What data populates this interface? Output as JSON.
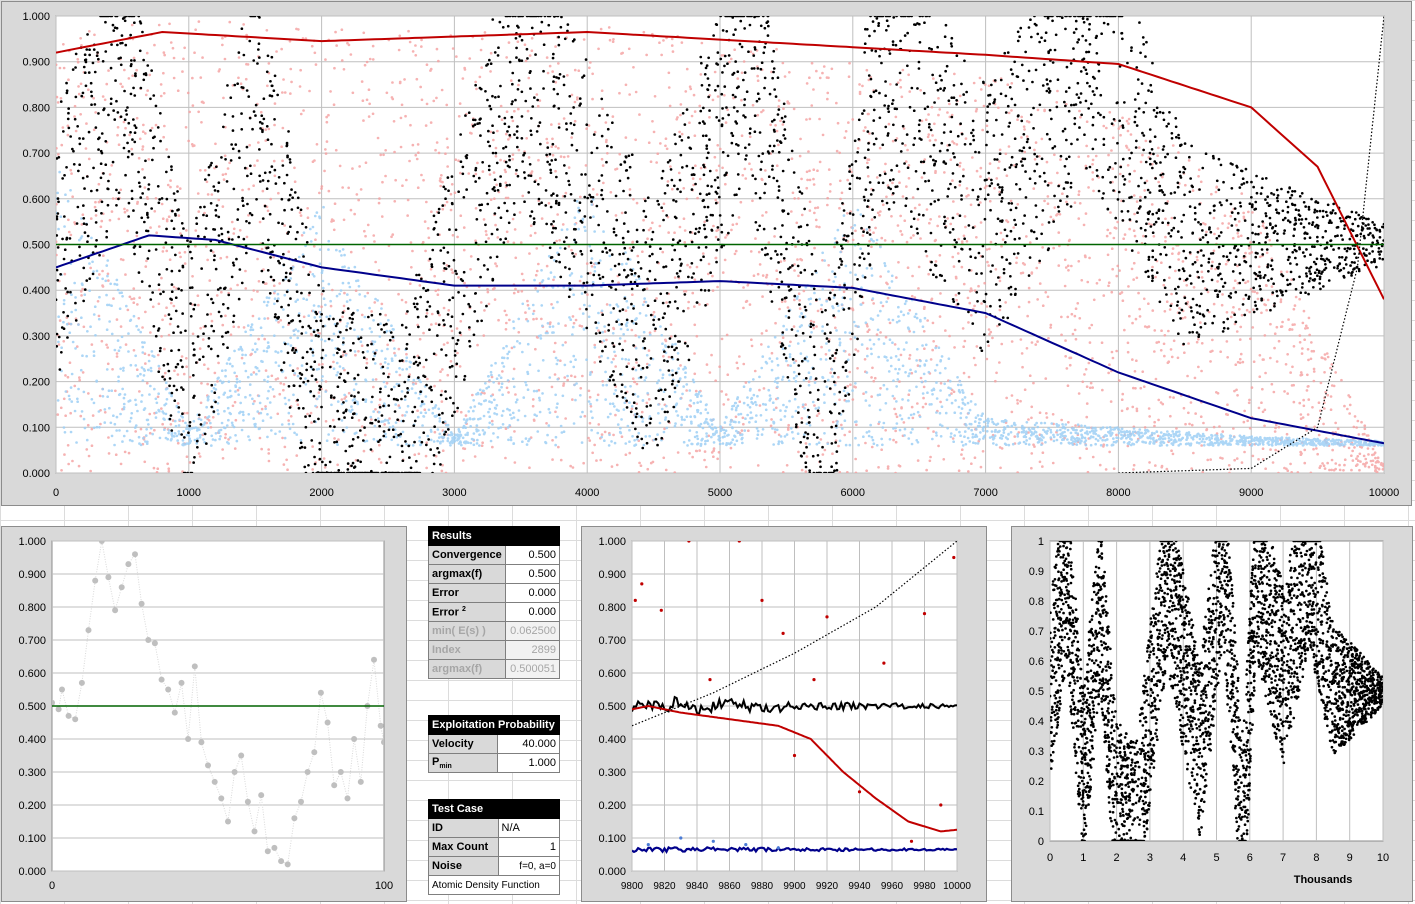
{
  "chart_data": [
    {
      "type": "scatter",
      "xlim": [
        0,
        10000
      ],
      "ylim": [
        0,
        1
      ],
      "x_ticks": [
        "0",
        "1000",
        "2000",
        "3000",
        "4000",
        "5000",
        "6000",
        "7000",
        "8000",
        "9000",
        "10000"
      ],
      "y_ticks": [
        "0.000",
        "0.100",
        "0.200",
        "0.300",
        "0.400",
        "0.500",
        "0.600",
        "0.700",
        "0.800",
        "0.900",
        "1.000"
      ],
      "series": [
        {
          "color": "#f4a0a0",
          "values": [
            [
              0,
              0.97
            ],
            [
              1000,
              0.99
            ],
            [
              2000,
              0.98
            ],
            [
              3000,
              0.96
            ],
            [
              4000,
              0.99
            ],
            [
              5000,
              0.95
            ],
            [
              6000,
              0.9
            ],
            [
              7000,
              0.88
            ],
            [
              8000,
              0.8
            ],
            [
              9000,
              0.6
            ],
            [
              10000,
              0.02
            ]
          ]
        },
        {
          "color": "#9ecff5",
          "values": [
            [
              0,
              0.7
            ],
            [
              1000,
              0.1
            ],
            [
              2000,
              0.6
            ],
            [
              3000,
              0.08
            ],
            [
              4000,
              0.65
            ],
            [
              5000,
              0.1
            ],
            [
              6000,
              0.6
            ],
            [
              7000,
              0.12
            ],
            [
              8000,
              0.1
            ],
            [
              9000,
              0.08
            ],
            [
              10000,
              0.07
            ]
          ]
        },
        {
          "color": "#000000",
          "values": [
            [
              0,
              0.5
            ],
            [
              500,
              0.9
            ],
            [
              1000,
              0.2
            ],
            [
              1500,
              0.8
            ],
            [
              2000,
              0.1
            ],
            [
              2600,
              0.03
            ],
            [
              3500,
              0.9
            ],
            [
              4500,
              0.3
            ],
            [
              5200,
              0.95
            ],
            [
              5800,
              0.05
            ],
            [
              6200,
              0.9
            ],
            [
              7000,
              0.55
            ],
            [
              7800,
              0.95
            ],
            [
              8500,
              0.5
            ],
            [
              9500,
              0.5
            ],
            [
              10000,
              0.5
            ]
          ]
        },
        {
          "color": "#c00000",
          "values": [
            [
              0,
              0.92
            ],
            [
              800,
              0.965
            ],
            [
              2000,
              0.945
            ],
            [
              4000,
              0.965
            ],
            [
              5500,
              0.94
            ],
            [
              7000,
              0.915
            ],
            [
              8000,
              0.895
            ],
            [
              9000,
              0.8
            ],
            [
              9500,
              0.67
            ],
            [
              10000,
              0.38
            ]
          ]
        },
        {
          "color": "#00008b",
          "values": [
            [
              0,
              0.45
            ],
            [
              700,
              0.52
            ],
            [
              1200,
              0.51
            ],
            [
              2000,
              0.45
            ],
            [
              3000,
              0.41
            ],
            [
              4000,
              0.41
            ],
            [
              5000,
              0.42
            ],
            [
              6000,
              0.405
            ],
            [
              7000,
              0.35
            ],
            [
              8000,
              0.22
            ],
            [
              9000,
              0.12
            ],
            [
              10000,
              0.065
            ]
          ]
        },
        {
          "color": "#006400",
          "values": [
            [
              0,
              0.5
            ],
            [
              10000,
              0.5
            ]
          ]
        },
        {
          "color": "#000000",
          "values": [
            [
              8000,
              0
            ],
            [
              9000,
              0.01
            ],
            [
              9500,
              0.1
            ],
            [
              9800,
              0.45
            ],
            [
              10000,
              1
            ]
          ]
        }
      ]
    },
    {
      "type": "scatter",
      "xlim": [
        0,
        100
      ],
      "ylim": [
        0,
        1
      ],
      "x_ticks": [
        "0",
        "100"
      ],
      "y_ticks": [
        "0.000",
        "0.100",
        "0.200",
        "0.300",
        "0.400",
        "0.500",
        "0.600",
        "0.700",
        "0.800",
        "0.900",
        "1.000"
      ],
      "series": [
        {
          "color": "#bfbfbf",
          "values": [
            [
              0,
              0.51
            ],
            [
              2,
              0.49
            ],
            [
              3,
              0.55
            ],
            [
              5,
              0.47
            ],
            [
              7,
              0.46
            ],
            [
              9,
              0.57
            ],
            [
              11,
              0.73
            ],
            [
              13,
              0.88
            ],
            [
              15,
              1.0
            ],
            [
              17,
              0.89
            ],
            [
              19,
              0.79
            ],
            [
              21,
              0.86
            ],
            [
              23,
              0.93
            ],
            [
              25,
              0.96
            ],
            [
              27,
              0.81
            ],
            [
              29,
              0.7
            ],
            [
              31,
              0.69
            ],
            [
              33,
              0.58
            ],
            [
              35,
              0.55
            ],
            [
              37,
              0.48
            ],
            [
              39,
              0.57
            ],
            [
              41,
              0.4
            ],
            [
              43,
              0.62
            ],
            [
              45,
              0.39
            ],
            [
              47,
              0.32
            ],
            [
              49,
              0.27
            ],
            [
              51,
              0.22
            ],
            [
              53,
              0.15
            ],
            [
              55,
              0.3
            ],
            [
              57,
              0.35
            ],
            [
              59,
              0.21
            ],
            [
              61,
              0.12
            ],
            [
              63,
              0.23
            ],
            [
              65,
              0.06
            ],
            [
              67,
              0.07
            ],
            [
              69,
              0.03
            ],
            [
              71,
              0.02
            ],
            [
              73,
              0.16
            ],
            [
              75,
              0.21
            ],
            [
              77,
              0.3
            ],
            [
              79,
              0.36
            ],
            [
              81,
              0.54
            ],
            [
              83,
              0.45
            ],
            [
              85,
              0.26
            ],
            [
              87,
              0.3
            ],
            [
              89,
              0.22
            ],
            [
              91,
              0.4
            ],
            [
              93,
              0.27
            ],
            [
              95,
              0.5
            ],
            [
              97,
              0.64
            ],
            [
              99,
              0.44
            ],
            [
              100,
              0.39
            ]
          ]
        },
        {
          "color": "#006400",
          "values": [
            [
              0,
              0.5
            ],
            [
              100,
              0.5
            ]
          ]
        }
      ]
    },
    {
      "type": "scatter",
      "xlim": [
        9800,
        10000
      ],
      "ylim": [
        0,
        1
      ],
      "x_ticks": [
        "9800",
        "9820",
        "9840",
        "9860",
        "9880",
        "9900",
        "9920",
        "9940",
        "9960",
        "9980",
        "10000"
      ],
      "y_ticks": [
        "0.000",
        "0.100",
        "0.200",
        "0.300",
        "0.400",
        "0.500",
        "0.600",
        "0.700",
        "0.800",
        "0.900",
        "1.000"
      ],
      "series": [
        {
          "color": "#000000",
          "values": [
            [
              9800,
              0.5
            ],
            [
              9810,
              0.51
            ],
            [
              9820,
              0.49
            ],
            [
              9830,
              0.52
            ],
            [
              9840,
              0.48
            ],
            [
              9850,
              0.5
            ],
            [
              9860,
              0.51
            ],
            [
              9880,
              0.49
            ],
            [
              9900,
              0.5
            ],
            [
              9920,
              0.5
            ],
            [
              9960,
              0.5
            ],
            [
              10000,
              0.5
            ]
          ]
        },
        {
          "color": "#c00000",
          "values": [
            [
              9800,
              0.49
            ],
            [
              9810,
              0.5
            ],
            [
              9830,
              0.48
            ],
            [
              9860,
              0.46
            ],
            [
              9890,
              0.44
            ],
            [
              9910,
              0.4
            ],
            [
              9930,
              0.3
            ],
            [
              9950,
              0.22
            ],
            [
              9970,
              0.15
            ],
            [
              9990,
              0.12
            ],
            [
              10000,
              0.125
            ]
          ]
        },
        {
          "color": "#00008b",
          "values": [
            [
              9800,
              0.065
            ],
            [
              10000,
              0.065
            ]
          ]
        },
        {
          "color": "#000000",
          "values": [
            [
              9800,
              0.44
            ],
            [
              9850,
              0.54
            ],
            [
              9900,
              0.66
            ],
            [
              9950,
              0.8
            ],
            [
              10000,
              1.0
            ]
          ]
        },
        {
          "color": "#c00000",
          "values": [
            [
              9802,
              0.82
            ],
            [
              9806,
              0.87
            ],
            [
              9818,
              0.79
            ],
            [
              9835,
              1.0
            ],
            [
              9848,
              0.58
            ],
            [
              9866,
              1.0
            ],
            [
              9880,
              0.82
            ],
            [
              9893,
              0.72
            ],
            [
              9900,
              0.35
            ],
            [
              9912,
              0.58
            ],
            [
              9920,
              0.77
            ],
            [
              9940,
              0.24
            ],
            [
              9955,
              0.63
            ],
            [
              9972,
              0.09
            ],
            [
              9980,
              0.78
            ],
            [
              9990,
              0.2
            ],
            [
              9998,
              0.95
            ]
          ]
        },
        {
          "color": "#4a7bd5",
          "values": [
            [
              9810,
              0.08
            ],
            [
              9830,
              0.1
            ],
            [
              9850,
              0.09
            ],
            [
              9870,
              0.08
            ],
            [
              9890,
              0.07
            ]
          ]
        }
      ]
    },
    {
      "type": "scatter",
      "xlim": [
        0,
        10
      ],
      "ylim": [
        0,
        1
      ],
      "xlabel": "Thousands",
      "x_ticks": [
        "0",
        "1",
        "2",
        "3",
        "4",
        "5",
        "6",
        "7",
        "8",
        "9",
        "10"
      ],
      "y_ticks": [
        "0",
        "0.1",
        "0.2",
        "0.3",
        "0.4",
        "0.5",
        "0.6",
        "0.7",
        "0.8",
        "0.9",
        "1"
      ],
      "series": [
        {
          "color": "#000000",
          "values": [
            [
              0,
              0.5
            ],
            [
              0.5,
              0.9
            ],
            [
              1,
              0.2
            ],
            [
              1.5,
              0.8
            ],
            [
              2,
              0.1
            ],
            [
              2.6,
              0.03
            ],
            [
              3.5,
              0.9
            ],
            [
              4.5,
              0.3
            ],
            [
              5.2,
              0.95
            ],
            [
              5.8,
              0.05
            ],
            [
              6.2,
              0.9
            ],
            [
              7,
              0.55
            ],
            [
              7.8,
              0.95
            ],
            [
              8.5,
              0.5
            ],
            [
              9.5,
              0.5
            ],
            [
              10,
              0.5
            ]
          ]
        }
      ]
    }
  ],
  "results": {
    "title": "Results",
    "rows": [
      {
        "label": "Convergence",
        "value": "0.500"
      },
      {
        "label": "argmax(f)",
        "value": "0.500"
      },
      {
        "label": "Error",
        "value": "0.000"
      },
      {
        "label": "Error",
        "sup": "2",
        "value": "0.000"
      },
      {
        "label": "min( E(s) )",
        "value": "0.062500"
      },
      {
        "label": "Index",
        "value": "2899"
      },
      {
        "label": "argmax(f)",
        "value": "0.500051"
      }
    ]
  },
  "exploitation": {
    "title": "Exploitation Probability",
    "velocity_label": "Velocity",
    "velocity_value": "40.000",
    "pmin_label": "P",
    "pmin_sub": "min",
    "pmin_value": "1.000"
  },
  "test_case": {
    "title": "Test Case",
    "rows": [
      {
        "label": "ID",
        "value": "N/A"
      },
      {
        "label": "Max Count",
        "value": "1"
      },
      {
        "label": "Noise",
        "value": "f=0, a=0"
      }
    ],
    "footer": "Atomic Density Function"
  }
}
